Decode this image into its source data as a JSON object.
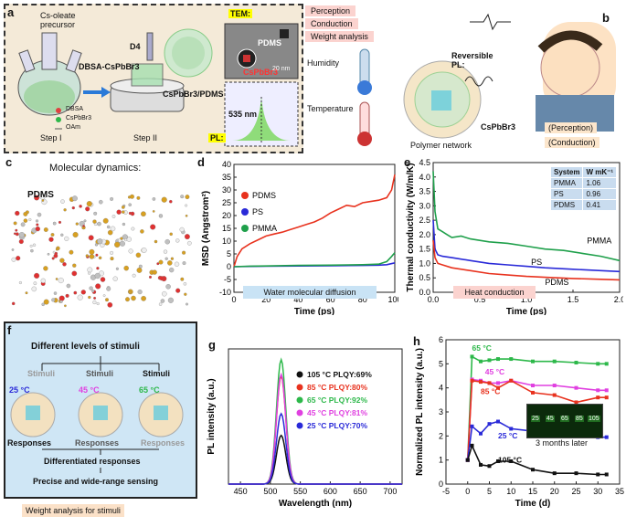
{
  "figure": {
    "a": {
      "label": "a",
      "precursor": "Cs-oleate\nprecursor",
      "dbsa_cspbbr3": "DBSA-CsPbBr3",
      "d4": "D4",
      "composite": "CsPbBr3/PDMS",
      "step1": "Step I",
      "step2": "Step II",
      "legend": [
        "DBSA",
        "CsPbBr3",
        "OAm"
      ],
      "tem": "TEM:",
      "pdms": "PDMS",
      "cspbbr3": "CsPbBr3",
      "scale": "20 nm",
      "pl": "PL:",
      "pl_peak": "535 nm"
    },
    "b": {
      "label": "b",
      "items": [
        "Perception",
        "Conduction",
        "Weight analysis"
      ],
      "humidity": "Humidity",
      "temperature": "Temperature",
      "reversible_pl": "Reversible\nPL:",
      "cspbbr3": "CsPbBr3",
      "polymer": "Polymer network",
      "perception": "(Perception)",
      "conduction": "(Conduction)"
    },
    "c": {
      "label": "c",
      "title": "Molecular dynamics:",
      "pdms": "PDMS"
    },
    "d": {
      "label": "d",
      "banner": "Water molecular diffusion",
      "chart_data": {
        "type": "line",
        "xlabel": "Time (ps)",
        "ylabel": "MSD (Angstrom²)",
        "xlim": [
          0,
          100
        ],
        "ylim": [
          -10,
          40
        ],
        "xticks": [
          0,
          20,
          40,
          60,
          80,
          100
        ],
        "yticks": [
          -10,
          -5,
          0,
          5,
          10,
          15,
          20,
          25,
          30,
          35,
          40
        ],
        "series": [
          {
            "name": "PDMS",
            "color": "#e8321e",
            "x": [
              0,
              2,
              5,
              10,
              15,
              20,
              25,
              30,
              35,
              40,
              45,
              50,
              55,
              60,
              65,
              70,
              75,
              80,
              85,
              90,
              95,
              98,
              100
            ],
            "y": [
              0,
              4,
              7,
              9,
              10.5,
              12,
              12.8,
              13.5,
              14.5,
              15.5,
              16.5,
              17.5,
              19,
              21,
              22.5,
              24,
              23.5,
              25,
              25.5,
              26,
              27,
              30,
              36
            ]
          },
          {
            "name": "PS",
            "color": "#2a2ad8",
            "x": [
              0,
              10,
              20,
              40,
              60,
              80,
              90,
              95,
              100
            ],
            "y": [
              0,
              0.1,
              0.2,
              0.3,
              0.4,
              0.5,
              0.6,
              0.8,
              1.5
            ]
          },
          {
            "name": "PMMA",
            "color": "#1fa04b",
            "x": [
              0,
              10,
              20,
              40,
              60,
              80,
              90,
              95,
              98,
              100
            ],
            "y": [
              0,
              0.2,
              0.3,
              0.5,
              0.6,
              0.8,
              1.0,
              2.0,
              4.0,
              5.5
            ]
          }
        ]
      }
    },
    "e": {
      "label": "e",
      "banner": "Heat conduction",
      "table": {
        "headers": [
          "System",
          "W mK⁻¹"
        ],
        "rows": [
          [
            "PMMA",
            "1.06"
          ],
          [
            "PS",
            "0.96"
          ],
          [
            "PDMS",
            "0.41"
          ]
        ]
      },
      "chart_data": {
        "type": "line",
        "xlabel": "Time (ps)",
        "ylabel": "Thermal conductivity (W/m/K)",
        "xlim": [
          0,
          2
        ],
        "ylim": [
          0,
          4.5
        ],
        "xticks": [
          0,
          0.5,
          1,
          1.5,
          2
        ],
        "xticklabels": [
          "0.0",
          "0.5",
          "1.0",
          "1.5",
          "2.0"
        ],
        "yticks": [
          0,
          0.5,
          1,
          1.5,
          2,
          2.5,
          3,
          3.5,
          4,
          4.5
        ],
        "yticklabels": [
          "0.0",
          "0.5",
          "1.0",
          "1.5",
          "2.0",
          "2.5",
          "3.0",
          "3.5",
          "4.0",
          "4.5"
        ],
        "series": [
          {
            "name": "PMMA",
            "color": "#1fa04b",
            "x": [
              0,
              0.02,
              0.05,
              0.1,
              0.15,
              0.2,
              0.3,
              0.4,
              0.5,
              0.6,
              0.8,
              1.0,
              1.2,
              1.4,
              1.6,
              1.8,
              2.0
            ],
            "y": [
              4.2,
              2.8,
              2.2,
              2.1,
              2.0,
              1.9,
              1.95,
              1.85,
              1.8,
              1.75,
              1.7,
              1.6,
              1.5,
              1.45,
              1.35,
              1.25,
              1.1
            ]
          },
          {
            "name": "PS",
            "color": "#2a2ad8",
            "x": [
              0,
              0.02,
              0.05,
              0.1,
              0.2,
              0.4,
              0.6,
              0.8,
              1.0,
              1.2,
              1.5,
              1.8,
              2.0
            ],
            "y": [
              2.5,
              1.5,
              1.3,
              1.25,
              1.2,
              1.1,
              1.0,
              0.95,
              0.9,
              0.85,
              0.8,
              0.75,
              0.72
            ]
          },
          {
            "name": "PDMS",
            "color": "#e8321e",
            "x": [
              0,
              0.02,
              0.05,
              0.1,
              0.2,
              0.4,
              0.6,
              0.8,
              1.0,
              1.2,
              1.5,
              1.8,
              2.0
            ],
            "y": [
              1.8,
              1.2,
              1.0,
              0.95,
              0.85,
              0.75,
              0.65,
              0.6,
              0.55,
              0.52,
              0.48,
              0.45,
              0.43
            ]
          }
        ],
        "annotations": [
          "PMMA",
          "PS",
          "PDMS"
        ]
      }
    },
    "f": {
      "label": "f",
      "title": "Different levels of stimuli",
      "stimuli": [
        "Stimuli",
        "Stimuli",
        "Stimuli"
      ],
      "temps": [
        "25 °C",
        "45 °C",
        "65 °C"
      ],
      "responses": [
        "Responses",
        "Responses",
        "Responses"
      ],
      "diff": "Differentiated responses",
      "precise": "Precise and wide-range sensing",
      "weight": "Weight analysis for stimuli"
    },
    "g": {
      "label": "g",
      "chart_data": {
        "type": "line",
        "xlabel": "Wavelength (nm)",
        "ylabel": "PL intensity (a.u.)",
        "xlim": [
          430,
          720
        ],
        "xticks": [
          450,
          500,
          550,
          600,
          650,
          700
        ],
        "ylim": [
          0,
          1
        ],
        "peak": 518,
        "series": [
          {
            "name": "105 °C PLQY:69%",
            "color": "#111111",
            "amp": 0.36
          },
          {
            "name": "85 °C PLQY:80%",
            "color": "#e8321e",
            "amp": 0.8
          },
          {
            "name": "65 °C PLQY:92%",
            "color": "#2db84a",
            "amp": 0.92
          },
          {
            "name": "45 °C PLQY:81%",
            "color": "#e040e0",
            "amp": 0.81
          },
          {
            "name": "25 °C PLQY:70%",
            "color": "#2a2ad8",
            "amp": 0.52
          }
        ]
      }
    },
    "h": {
      "label": "h",
      "inset_caption": "3 months later",
      "inset_temps": [
        "25",
        "45",
        "65",
        "85",
        "105"
      ],
      "chart_data": {
        "type": "line",
        "xlabel": "Time (d)",
        "ylabel": "Normalized PL intensity (a.u.)",
        "xlim": [
          -5,
          35
        ],
        "ylim": [
          0,
          6
        ],
        "xticks": [
          -5,
          0,
          5,
          10,
          15,
          20,
          25,
          30,
          35
        ],
        "yticks": [
          0,
          1,
          2,
          3,
          4,
          5,
          6
        ],
        "series": [
          {
            "name": "65 °C",
            "color": "#2db84a",
            "x": [
              0,
              1,
              3,
              5,
              7,
              10,
              15,
              20,
              25,
              30,
              32
            ],
            "y": [
              1,
              5.3,
              5.1,
              5.15,
              5.2,
              5.2,
              5.1,
              5.1,
              5.05,
              5.0,
              5.0
            ]
          },
          {
            "name": "45 °C",
            "color": "#e040e0",
            "x": [
              0,
              1,
              3,
              5,
              7,
              10,
              15,
              20,
              25,
              30,
              32
            ],
            "y": [
              1,
              4.35,
              4.3,
              4.2,
              4.2,
              4.3,
              4.1,
              4.1,
              4.0,
              3.9,
              3.9
            ]
          },
          {
            "name": "85 °C",
            "color": "#e8321e",
            "x": [
              0,
              1,
              3,
              5,
              7,
              10,
              15,
              20,
              25,
              30,
              32
            ],
            "y": [
              1,
              4.3,
              4.25,
              4.2,
              4.0,
              4.3,
              3.8,
              3.7,
              3.4,
              3.6,
              3.6
            ]
          },
          {
            "name": "25 °C",
            "color": "#2a2ad8",
            "x": [
              0,
              1,
              3,
              5,
              7,
              10,
              15,
              20,
              25,
              30,
              32
            ],
            "y": [
              1,
              2.4,
              2.1,
              2.5,
              2.6,
              2.3,
              2.2,
              2.0,
              2.0,
              1.95,
              1.95
            ]
          },
          {
            "name": "105 °C",
            "color": "#111111",
            "x": [
              0,
              1,
              3,
              5,
              7,
              10,
              15,
              20,
              25,
              30,
              32
            ],
            "y": [
              1,
              1.6,
              0.8,
              0.75,
              0.95,
              0.95,
              0.6,
              0.45,
              0.45,
              0.4,
              0.4
            ]
          }
        ]
      }
    }
  }
}
